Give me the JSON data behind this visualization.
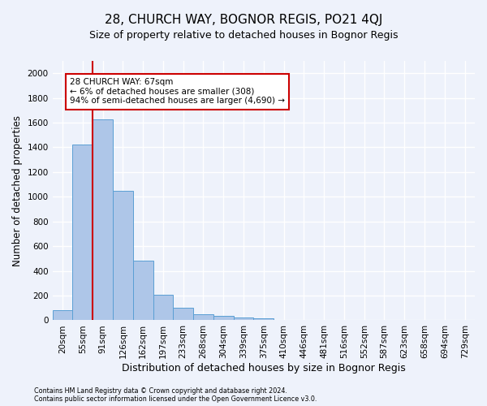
{
  "title": "28, CHURCH WAY, BOGNOR REGIS, PO21 4QJ",
  "subtitle": "Size of property relative to detached houses in Bognor Regis",
  "xlabel": "Distribution of detached houses by size in Bognor Regis",
  "ylabel": "Number of detached properties",
  "bar_labels": [
    "20sqm",
    "55sqm",
    "91sqm",
    "126sqm",
    "162sqm",
    "197sqm",
    "233sqm",
    "268sqm",
    "304sqm",
    "339sqm",
    "375sqm",
    "410sqm",
    "446sqm",
    "481sqm",
    "516sqm",
    "552sqm",
    "587sqm",
    "623sqm",
    "658sqm",
    "694sqm",
    "729sqm"
  ],
  "bar_values": [
    80,
    1425,
    1625,
    1050,
    480,
    205,
    100,
    48,
    35,
    22,
    18,
    0,
    0,
    0,
    0,
    0,
    0,
    0,
    0,
    0,
    0
  ],
  "bar_color": "#aec6e8",
  "bar_edge_color": "#5a9fd4",
  "property_line_x": 1.5,
  "property_line_color": "#cc0000",
  "annotation_text": "28 CHURCH WAY: 67sqm\n← 6% of detached houses are smaller (308)\n94% of semi-detached houses are larger (4,690) →",
  "annotation_box_color": "#ffffff",
  "annotation_box_edge_color": "#cc0000",
  "ylim": [
    0,
    2100
  ],
  "yticks": [
    0,
    200,
    400,
    600,
    800,
    1000,
    1200,
    1400,
    1600,
    1800,
    2000
  ],
  "footnote1": "Contains HM Land Registry data © Crown copyright and database right 2024.",
  "footnote2": "Contains public sector information licensed under the Open Government Licence v3.0.",
  "background_color": "#eef2fb",
  "grid_color": "#ffffff",
  "title_fontsize": 11,
  "subtitle_fontsize": 9,
  "xlabel_fontsize": 9,
  "ylabel_fontsize": 8.5,
  "tick_fontsize": 7.5,
  "annot_fontsize": 7.5,
  "footnote_fontsize": 5.8
}
